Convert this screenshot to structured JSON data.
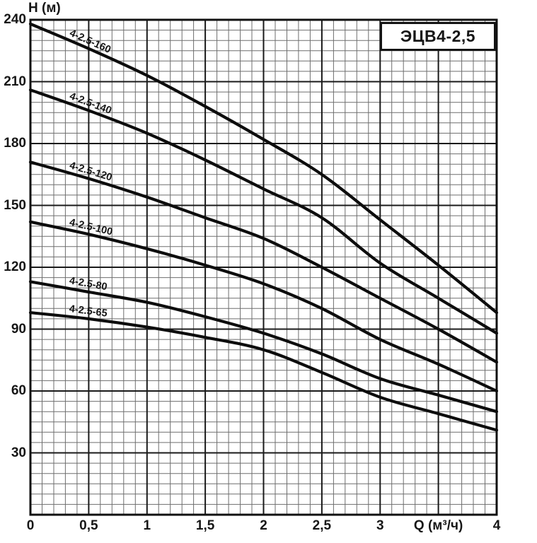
{
  "title_box": {
    "text": "ЭЦВ4-2,5"
  },
  "y_axis": {
    "label": "H (м)",
    "ticks": [
      "240",
      "210",
      "180",
      "150",
      "120",
      "90",
      "60",
      "30"
    ]
  },
  "x_axis": {
    "tick_labels": [
      "0",
      "0,5",
      "1",
      "1,5",
      "2",
      "2,5",
      "3"
    ],
    "unit_label": "Q (м³/ч)",
    "end_tick": "4"
  },
  "colors": {
    "curve": "#0d0d0d",
    "major_grid": "#1a1a1a",
    "minor_grid": "#6e6e6e",
    "border": "#111111"
  },
  "chart_data": {
    "type": "line",
    "title": "ЭЦВ4-2,5",
    "xlabel": "Q (м³/ч)",
    "ylabel": "H (м)",
    "xlim": [
      0,
      4
    ],
    "ylim": [
      0,
      240
    ],
    "x_major_step": 0.5,
    "x_minor_step": 0.1,
    "y_major_step": 30,
    "y_minor_step": 5,
    "grid": "on",
    "legend_position": "labels-along-curves",
    "x": [
      0,
      0.5,
      1,
      1.5,
      2,
      2.5,
      3,
      3.5,
      4
    ],
    "series": [
      {
        "name": "4-2.5-160",
        "values": [
          238,
          226,
          213,
          198,
          182,
          165,
          143,
          121,
          98
        ]
      },
      {
        "name": "4-2.5-140",
        "values": [
          206,
          196,
          185,
          172,
          158,
          144,
          122,
          105,
          88
        ]
      },
      {
        "name": "4-2.5-120",
        "values": [
          171,
          163,
          154,
          144,
          134,
          120,
          105,
          90,
          74
        ]
      },
      {
        "name": "4-2.5-100",
        "values": [
          142,
          136,
          129,
          121,
          112,
          100,
          85,
          73,
          60
        ]
      },
      {
        "name": "4-2.5-80",
        "values": [
          113,
          108,
          103,
          96,
          88,
          78,
          66,
          58,
          50
        ]
      },
      {
        "name": "4-2.5-65",
        "values": [
          98,
          95,
          91,
          86,
          80,
          69,
          57,
          49,
          41
        ]
      }
    ]
  }
}
